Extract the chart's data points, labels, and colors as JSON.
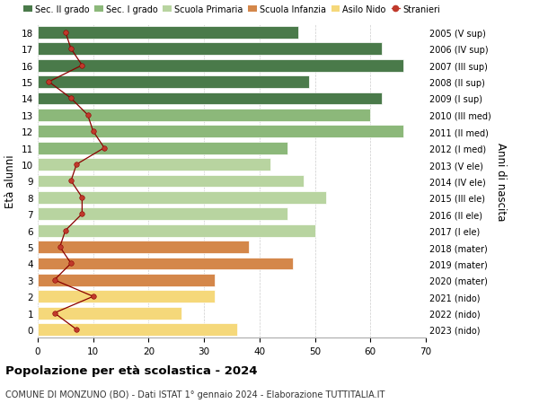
{
  "ages": [
    0,
    1,
    2,
    3,
    4,
    5,
    6,
    7,
    8,
    9,
    10,
    11,
    12,
    13,
    14,
    15,
    16,
    17,
    18
  ],
  "bar_values": [
    36,
    26,
    32,
    32,
    46,
    38,
    50,
    45,
    52,
    48,
    42,
    45,
    66,
    60,
    62,
    49,
    66,
    62,
    47
  ],
  "right_labels": [
    "2023 (nido)",
    "2022 (nido)",
    "2021 (nido)",
    "2020 (mater)",
    "2019 (mater)",
    "2018 (mater)",
    "2017 (I ele)",
    "2016 (II ele)",
    "2015 (III ele)",
    "2014 (IV ele)",
    "2013 (V ele)",
    "2012 (I med)",
    "2011 (II med)",
    "2010 (III med)",
    "2009 (I sup)",
    "2008 (II sup)",
    "2007 (III sup)",
    "2006 (IV sup)",
    "2005 (V sup)"
  ],
  "bar_colors": [
    "#f5d87a",
    "#f5d87a",
    "#f5d87a",
    "#d4874a",
    "#d4874a",
    "#d4874a",
    "#b8d4a0",
    "#b8d4a0",
    "#b8d4a0",
    "#b8d4a0",
    "#b8d4a0",
    "#8cb87a",
    "#8cb87a",
    "#8cb87a",
    "#4a7a4a",
    "#4a7a4a",
    "#4a7a4a",
    "#4a7a4a",
    "#4a7a4a"
  ],
  "stranieri_values": [
    7,
    3,
    10,
    3,
    6,
    4,
    5,
    8,
    8,
    6,
    7,
    12,
    10,
    9,
    6,
    2,
    8,
    6,
    5
  ],
  "legend_labels": [
    "Sec. II grado",
    "Sec. I grado",
    "Scuola Primaria",
    "Scuola Infanzia",
    "Asilo Nido",
    "Stranieri"
  ],
  "legend_colors": [
    "#4a7a4a",
    "#8cb87a",
    "#b8d4a0",
    "#d4874a",
    "#f5d87a",
    "#c0392b"
  ],
  "ylabel": "Età alunni",
  "right_ylabel": "Anni di nascita",
  "title": "Popolazione per età scolastica - 2024",
  "subtitle": "COMUNE DI MONZUNO (BO) - Dati ISTAT 1° gennaio 2024 - Elaborazione TUTTITALIA.IT",
  "xlim": [
    0,
    70
  ],
  "background_color": "#ffffff",
  "grid_color": "#cccccc"
}
